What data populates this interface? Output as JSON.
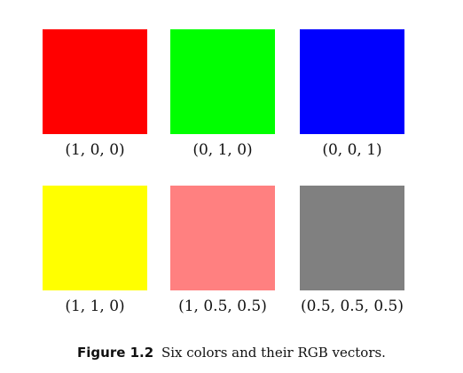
{
  "swatches": [
    {
      "label": "(1, 0, 0)",
      "color": "#ff0000"
    },
    {
      "label": "(0, 1, 0)",
      "color": "#00ff00"
    },
    {
      "label": "(0, 0, 1)",
      "color": "#0000ff"
    },
    {
      "label": "(1, 1, 0)",
      "color": "#ffff00"
    },
    {
      "label": "(1, 0.5, 0.5)",
      "color": "#ff8080"
    },
    {
      "label": "(0.5, 0.5, 0.5)",
      "color": "#808080"
    }
  ],
  "caption": {
    "number": "Figure 1.2",
    "text": "Six colors and their RGB vectors."
  }
}
